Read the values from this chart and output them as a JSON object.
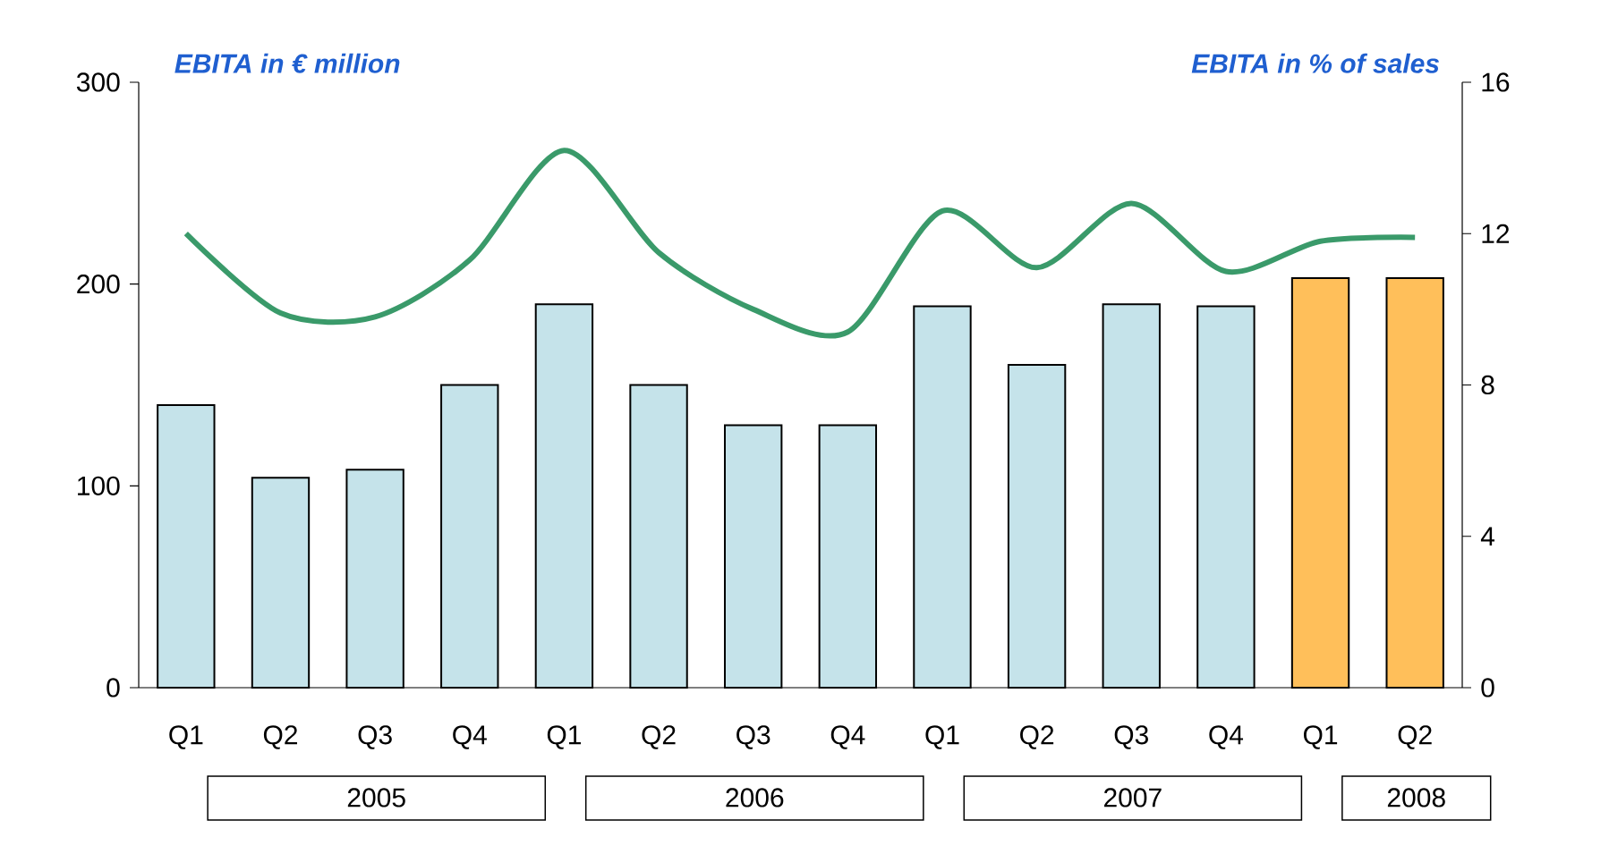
{
  "chart_data": {
    "type": "bar",
    "ylabel": "EBITA in € million",
    "y2label": "EBITA in % of sales",
    "categories": [
      "Q1",
      "Q2",
      "Q3",
      "Q4",
      "Q1",
      "Q2",
      "Q3",
      "Q4",
      "Q1",
      "Q2",
      "Q3",
      "Q4",
      "Q1",
      "Q2"
    ],
    "series": [
      {
        "values": [
          140,
          104,
          108,
          150,
          190,
          150,
          130,
          130,
          189,
          160,
          190,
          189,
          203,
          203
        ],
        "colors": [
          "#c5e3ea",
          "#c5e3ea",
          "#c5e3ea",
          "#c5e3ea",
          "#c5e3ea",
          "#c5e3ea",
          "#c5e3ea",
          "#c5e3ea",
          "#c5e3ea",
          "#c5e3ea",
          "#c5e3ea",
          "#c5e3ea",
          "#ffbf5a",
          "#ffbf5a"
        ]
      },
      {
        "type": "line",
        "axis": "y2",
        "color": "#3a9a6a",
        "values": [
          12.0,
          9.9,
          9.8,
          11.3,
          14.2,
          11.5,
          10.0,
          9.4,
          12.6,
          11.1,
          12.8,
          11.0,
          11.8,
          11.9
        ]
      }
    ],
    "ylim": [
      0,
      300
    ],
    "yticks": [
      0,
      100,
      200,
      300
    ],
    "y2lim": [
      0,
      16
    ],
    "y2ticks": [
      0,
      4,
      8,
      12,
      16
    ],
    "annotations": [
      "2005",
      "2006",
      "2007",
      "2008"
    ]
  }
}
